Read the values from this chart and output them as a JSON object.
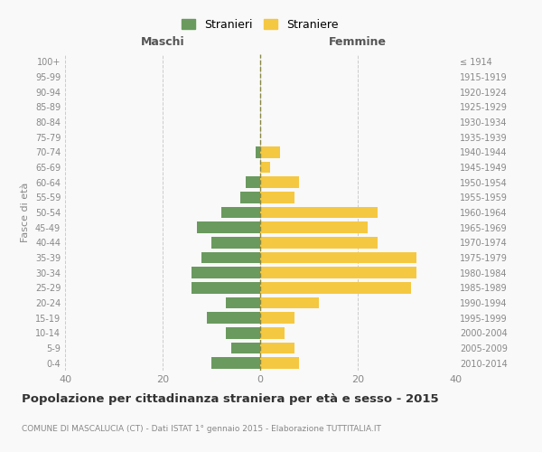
{
  "age_groups": [
    "100+",
    "95-99",
    "90-94",
    "85-89",
    "80-84",
    "75-79",
    "70-74",
    "65-69",
    "60-64",
    "55-59",
    "50-54",
    "45-49",
    "40-44",
    "35-39",
    "30-34",
    "25-29",
    "20-24",
    "15-19",
    "10-14",
    "5-9",
    "0-4"
  ],
  "birth_years": [
    "≤ 1914",
    "1915-1919",
    "1920-1924",
    "1925-1929",
    "1930-1934",
    "1935-1939",
    "1940-1944",
    "1945-1949",
    "1950-1954",
    "1955-1959",
    "1960-1964",
    "1965-1969",
    "1970-1974",
    "1975-1979",
    "1980-1984",
    "1985-1989",
    "1990-1994",
    "1995-1999",
    "2000-2004",
    "2005-2009",
    "2010-2014"
  ],
  "maschi": [
    0,
    0,
    0,
    0,
    0,
    0,
    1,
    0,
    3,
    4,
    8,
    13,
    10,
    12,
    14,
    14,
    7,
    11,
    7,
    6,
    10
  ],
  "femmine": [
    0,
    0,
    0,
    0,
    0,
    0,
    4,
    2,
    8,
    7,
    24,
    22,
    24,
    32,
    32,
    31,
    12,
    7,
    5,
    7,
    8
  ],
  "color_maschi": "#6a9a5e",
  "color_femmine": "#f5c842",
  "bg_color": "#f9f9f9",
  "grid_color": "#cccccc",
  "title": "Popolazione per cittadinanza straniera per età e sesso - 2015",
  "subtitle": "COMUNE DI MASCALUCIA (CT) - Dati ISTAT 1° gennaio 2015 - Elaborazione TUTTITALIA.IT",
  "xlabel_left": "Maschi",
  "xlabel_right": "Femmine",
  "ylabel_left": "Fasce di età",
  "legend_maschi": "Stranieri",
  "legend_femmine": "Straniere",
  "xlim": 40
}
